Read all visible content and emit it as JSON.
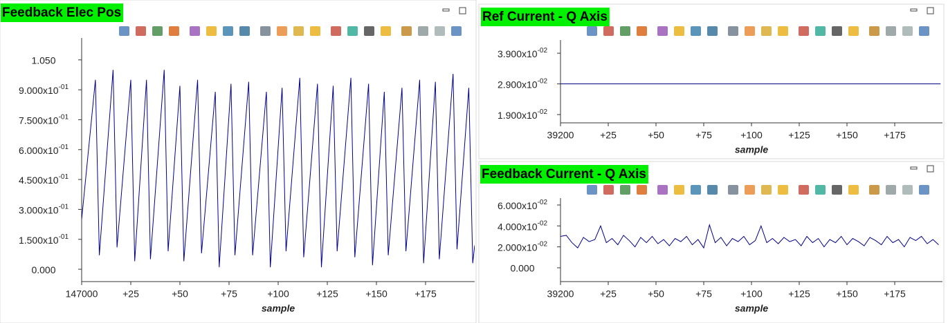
{
  "chart_data": [
    {
      "type": "line",
      "title": "Feedback Elec Pos",
      "x_label": "sample",
      "color": "#00008b",
      "x": [
        147000,
        147007,
        147009,
        147016,
        147018,
        147025,
        147027,
        147033,
        147035,
        147042,
        147044,
        147050,
        147052,
        147059,
        147061,
        147068,
        147070,
        147076,
        147078,
        147085,
        147087,
        147094,
        147096,
        147102,
        147104,
        147111,
        147113,
        147120,
        147122,
        147128,
        147130,
        147137,
        147139,
        147146,
        147148,
        147154,
        147156,
        147163,
        147165,
        147172,
        147174,
        147180,
        147182,
        147189,
        147191,
        147197,
        147199,
        147200
      ],
      "values": [
        0.25,
        0.95,
        0.07,
        1.0,
        0.11,
        0.95,
        0.04,
        0.95,
        0.05,
        1.0,
        0.09,
        0.92,
        0.04,
        0.95,
        0.08,
        0.89,
        0.01,
        0.93,
        0.07,
        0.94,
        0.07,
        0.89,
        0.01,
        0.91,
        0.09,
        0.96,
        0.06,
        0.93,
        0.01,
        0.92,
        0.09,
        0.96,
        0.06,
        0.93,
        0.02,
        0.89,
        0.07,
        0.91,
        0.09,
        0.95,
        0.03,
        0.94,
        0.05,
        0.98,
        0.1,
        0.91,
        0.03,
        0.12
      ],
      "xlim": [
        147000,
        147200
      ],
      "xticks": [
        147000,
        {
          "value": 147025,
          "label": "+25"
        },
        {
          "value": 147050,
          "label": "+50"
        },
        {
          "value": 147075,
          "label": "+75"
        },
        {
          "value": 147100,
          "label": "+100"
        },
        {
          "value": 147125,
          "label": "+125"
        },
        {
          "value": 147150,
          "label": "+150"
        },
        {
          "value": 147175,
          "label": "+175"
        }
      ],
      "ylim": [
        -0.062,
        1.16
      ],
      "yticks": [
        {
          "value": 0,
          "label": "0.000"
        },
        {
          "value": 0.15,
          "label": "1.500x10-01"
        },
        {
          "value": 0.3,
          "label": "3.000x10-01"
        },
        {
          "value": 0.45,
          "label": "4.500x10-01"
        },
        {
          "value": 0.6,
          "label": "6.000x10-01"
        },
        {
          "value": 0.75,
          "label": "7.500x10-01"
        },
        {
          "value": 0.9,
          "label": "9.000x10-01"
        },
        {
          "value": 1.05,
          "label": "1.050"
        }
      ]
    },
    {
      "type": "line",
      "title": "Ref Current - Q Axis",
      "x_label": "sample",
      "color": "#00008b",
      "x": [
        39200,
        39399
      ],
      "values": [
        0.029,
        0.029
      ],
      "xlim": [
        39200,
        39400
      ],
      "xticks": [
        39200,
        {
          "value": 39225,
          "label": "+25"
        },
        {
          "value": 39250,
          "label": "+50"
        },
        {
          "value": 39275,
          "label": "+75"
        },
        {
          "value": 39300,
          "label": "+100"
        },
        {
          "value": 39325,
          "label": "+125"
        },
        {
          "value": 39350,
          "label": "+150"
        },
        {
          "value": 39375,
          "label": "+175"
        }
      ],
      "ylim": [
        0.0163,
        0.0433
      ],
      "yticks": [
        {
          "value": 0.019,
          "label": "1.900x10-02"
        },
        {
          "value": 0.029,
          "label": "2.900x10-02"
        },
        {
          "value": 0.039,
          "label": "3.900x10-02"
        }
      ]
    },
    {
      "type": "line",
      "title": "Feedback Current - Q Axis",
      "x_label": "sample",
      "color": "#00008b",
      "x": [
        39200,
        39203,
        39206,
        39209,
        39212,
        39215,
        39218,
        39221,
        39224,
        39227,
        39230,
        39233,
        39236,
        39239,
        39242,
        39245,
        39248,
        39251,
        39254,
        39257,
        39260,
        39263,
        39266,
        39269,
        39272,
        39275,
        39278,
        39281,
        39284,
        39287,
        39290,
        39293,
        39296,
        39299,
        39302,
        39305,
        39308,
        39311,
        39314,
        39317,
        39320,
        39323,
        39326,
        39329,
        39332,
        39335,
        39338,
        39341,
        39344,
        39347,
        39350,
        39353,
        39356,
        39359,
        39362,
        39365,
        39368,
        39371,
        39374,
        39377,
        39380,
        39383,
        39386,
        39389,
        39392,
        39395,
        39398
      ],
      "values": [
        0.03,
        0.031,
        0.024,
        0.019,
        0.029,
        0.025,
        0.027,
        0.04,
        0.024,
        0.028,
        0.022,
        0.031,
        0.026,
        0.02,
        0.029,
        0.024,
        0.03,
        0.023,
        0.027,
        0.021,
        0.028,
        0.025,
        0.03,
        0.022,
        0.027,
        0.019,
        0.041,
        0.024,
        0.029,
        0.021,
        0.028,
        0.025,
        0.03,
        0.022,
        0.026,
        0.04,
        0.024,
        0.028,
        0.023,
        0.029,
        0.025,
        0.027,
        0.021,
        0.03,
        0.024,
        0.028,
        0.02,
        0.027,
        0.024,
        0.03,
        0.022,
        0.028,
        0.025,
        0.021,
        0.029,
        0.026,
        0.022,
        0.03,
        0.024,
        0.027,
        0.02,
        0.029,
        0.026,
        0.03,
        0.023,
        0.027,
        0.022
      ],
      "xlim": [
        39200,
        39400
      ],
      "xticks": [
        39200,
        {
          "value": 39225,
          "label": "+25"
        },
        {
          "value": 39250,
          "label": "+50"
        },
        {
          "value": 39275,
          "label": "+75"
        },
        {
          "value": 39300,
          "label": "+100"
        },
        {
          "value": 39325,
          "label": "+125"
        },
        {
          "value": 39350,
          "label": "+150"
        },
        {
          "value": 39375,
          "label": "+175"
        }
      ],
      "ylim": [
        -0.0132,
        0.0666
      ],
      "yticks": [
        {
          "value": 0,
          "label": "0.000"
        },
        {
          "value": 0.02,
          "label": "2.000x10-02"
        },
        {
          "value": 0.04,
          "label": "4.000x10-02"
        },
        {
          "value": 0.06,
          "label": "6.000x10-02"
        }
      ]
    }
  ]
}
